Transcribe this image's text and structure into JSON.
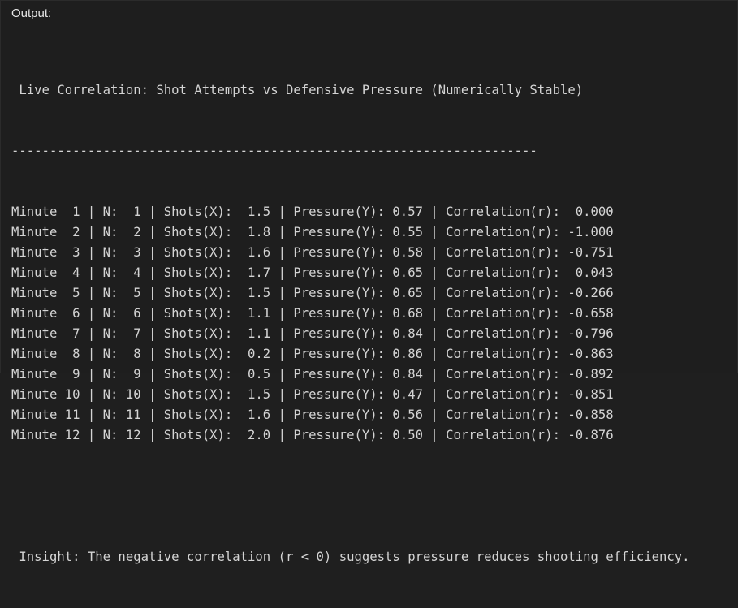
{
  "header": {
    "title": "Output:"
  },
  "output": {
    "title": " Live Correlation: Shot Attempts vs Defensive Pressure (Numerically Stable)",
    "separator": "---------------------------------------------------------------------",
    "rows": [
      "Minute  1 | N:  1 | Shots(X):  1.5 | Pressure(Y): 0.57 | Correlation(r):  0.000",
      "Minute  2 | N:  2 | Shots(X):  1.8 | Pressure(Y): 0.55 | Correlation(r): -1.000",
      "Minute  3 | N:  3 | Shots(X):  1.6 | Pressure(Y): 0.58 | Correlation(r): -0.751",
      "Minute  4 | N:  4 | Shots(X):  1.7 | Pressure(Y): 0.65 | Correlation(r):  0.043",
      "Minute  5 | N:  5 | Shots(X):  1.5 | Pressure(Y): 0.65 | Correlation(r): -0.266",
      "Minute  6 | N:  6 | Shots(X):  1.1 | Pressure(Y): 0.68 | Correlation(r): -0.658",
      "Minute  7 | N:  7 | Shots(X):  1.1 | Pressure(Y): 0.84 | Correlation(r): -0.796",
      "Minute  8 | N:  8 | Shots(X):  0.2 | Pressure(Y): 0.86 | Correlation(r): -0.863",
      "Minute  9 | N:  9 | Shots(X):  0.5 | Pressure(Y): 0.84 | Correlation(r): -0.892",
      "Minute 10 | N: 10 | Shots(X):  1.5 | Pressure(Y): 0.47 | Correlation(r): -0.851",
      "Minute 11 | N: 11 | Shots(X):  1.6 | Pressure(Y): 0.56 | Correlation(r): -0.858",
      "Minute 12 | N: 12 | Shots(X):  2.0 | Pressure(Y): 0.50 | Correlation(r): -0.876"
    ],
    "insight": " Insight: The negative correlation (r < 0) suggests pressure reduces shooting efficiency."
  }
}
